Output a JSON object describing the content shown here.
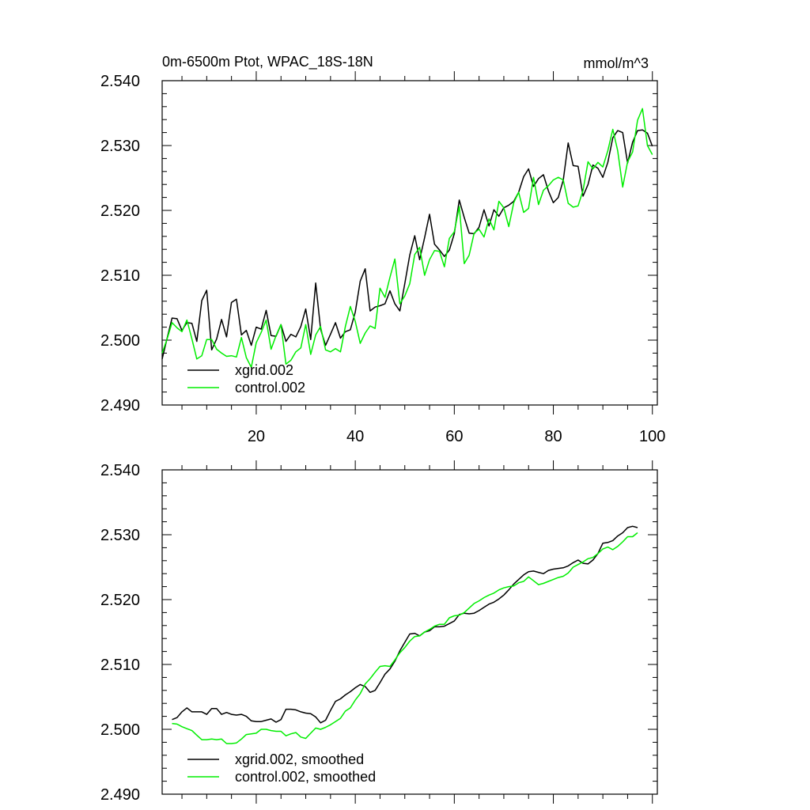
{
  "chart_data": [
    {
      "type": "line",
      "title": "0m-6500m Ptot, WPAC_18S-18N",
      "units": "mmol/m^3",
      "xlim": [
        1,
        101
      ],
      "ylim": [
        2.49,
        2.54
      ],
      "xticks": [
        20,
        40,
        60,
        80,
        100
      ],
      "yticks": [
        "2.490",
        "2.500",
        "2.510",
        "2.520",
        "2.530",
        "2.540"
      ],
      "xtick_labels": [
        "20",
        "40",
        "60",
        "80",
        "100"
      ],
      "legend_position": "bottom-left",
      "series": [
        {
          "name": "xgrid.002",
          "color": "#000000",
          "x_start": 1,
          "values": [
            2.4971,
            2.5003,
            2.5034,
            2.5033,
            2.5015,
            2.5027,
            2.5026,
            2.4998,
            2.5061,
            2.5077,
            2.4985,
            2.5002,
            2.5032,
            2.5005,
            2.5058,
            2.5063,
            2.5008,
            2.5015,
            2.4992,
            2.502,
            2.5017,
            2.5046,
            2.5007,
            2.5006,
            2.5024,
            2.4998,
            2.5009,
            2.5005,
            2.5021,
            2.5048,
            2.5001,
            2.5088,
            2.5017,
            2.4992,
            2.5009,
            2.5027,
            2.5003,
            2.5013,
            2.5016,
            2.5043,
            2.5091,
            2.511,
            2.5045,
            2.5051,
            2.5053,
            2.5056,
            2.5076,
            2.5056,
            2.5045,
            2.5087,
            2.5131,
            2.5161,
            2.5124,
            2.5158,
            2.5194,
            2.5148,
            2.5139,
            2.5129,
            2.5139,
            2.5164,
            2.5216,
            2.5189,
            2.5165,
            2.5164,
            2.5174,
            2.5201,
            2.5176,
            2.5201,
            2.5191,
            2.5204,
            2.5208,
            2.5214,
            2.5228,
            2.5252,
            2.5264,
            2.5237,
            2.5249,
            2.5255,
            2.523,
            2.5212,
            2.522,
            2.5247,
            2.5304,
            2.5269,
            2.5268,
            2.5222,
            2.524,
            2.527,
            2.5265,
            2.5251,
            2.5274,
            2.5312,
            2.5323,
            2.532,
            2.5273,
            2.5305,
            2.5323,
            2.5324,
            2.5319,
            2.5299
          ]
        },
        {
          "name": "control.002",
          "color": "#00ee00",
          "x_start": 1,
          "values": [
            2.498,
            2.5002,
            2.5027,
            2.5019,
            2.5013,
            2.5031,
            2.5002,
            2.4971,
            2.4976,
            2.5001,
            2.5001,
            2.4986,
            2.498,
            2.4975,
            2.4976,
            2.4974,
            2.5004,
            2.4973,
            2.4958,
            2.4996,
            2.5012,
            2.5031,
            2.4986,
            2.5007,
            2.5024,
            2.4963,
            2.4969,
            2.4982,
            2.4988,
            2.5024,
            2.4978,
            2.5008,
            2.5021,
            2.4985,
            2.4982,
            2.4987,
            2.4982,
            2.5021,
            2.5052,
            2.5029,
            2.4995,
            2.5011,
            2.5022,
            2.5018,
            2.508,
            2.5066,
            2.5097,
            2.5125,
            2.5056,
            2.5068,
            2.5087,
            2.5132,
            2.5143,
            2.51,
            2.5124,
            2.5138,
            2.5137,
            2.5113,
            2.5157,
            2.5167,
            2.5206,
            2.5118,
            2.5131,
            2.5165,
            2.5171,
            2.5159,
            2.5187,
            2.517,
            2.5214,
            2.5204,
            2.5175,
            2.5212,
            2.5228,
            2.5197,
            2.5203,
            2.5251,
            2.5209,
            2.5231,
            2.5238,
            2.5247,
            2.5251,
            2.5247,
            2.5211,
            2.5205,
            2.5207,
            2.5231,
            2.5275,
            2.5264,
            2.5274,
            2.5267,
            2.5292,
            2.5325,
            2.5292,
            2.5236,
            2.5275,
            2.529,
            2.5339,
            2.5357,
            2.53,
            2.5286
          ]
        }
      ]
    },
    {
      "type": "line",
      "title": "",
      "xlim": [
        1,
        101
      ],
      "ylim": [
        2.49,
        2.54
      ],
      "xticks": [
        20,
        40,
        60,
        80,
        100
      ],
      "yticks": [
        "2.490",
        "2.500",
        "2.510",
        "2.520",
        "2.530",
        "2.540"
      ],
      "legend_position": "bottom-left",
      "series": [
        {
          "name": "xgrid.002, smoothed",
          "color": "#000000",
          "x_start": 3,
          "values": [
            2.5015,
            2.5018,
            2.5027,
            2.5033,
            2.5027,
            2.5027,
            2.5027,
            2.5023,
            2.5032,
            2.5032,
            2.5023,
            2.5026,
            2.5023,
            2.5022,
            2.5023,
            2.502,
            2.5013,
            2.5012,
            2.5012,
            2.5014,
            2.5016,
            2.5011,
            2.5015,
            2.5031,
            2.5031,
            2.503,
            2.5027,
            2.5025,
            2.5024,
            2.5019,
            2.501,
            2.5014,
            2.5029,
            2.5043,
            2.5047,
            2.5053,
            2.5058,
            2.5064,
            2.5069,
            2.5066,
            2.5057,
            2.506,
            2.5072,
            2.5085,
            2.5093,
            2.5105,
            2.5121,
            2.5134,
            2.5147,
            2.5148,
            2.5144,
            2.515,
            2.5152,
            2.5158,
            2.5158,
            2.5159,
            2.5163,
            2.5167,
            2.5177,
            2.5179,
            2.5178,
            2.5179,
            2.5183,
            2.5188,
            2.5193,
            2.5196,
            2.5201,
            2.5207,
            2.5215,
            2.5224,
            2.5231,
            2.5238,
            2.5243,
            2.5244,
            2.5242,
            2.524,
            2.5245,
            2.5247,
            2.5248,
            2.5249,
            2.5252,
            2.5257,
            2.5261,
            2.5256,
            2.5255,
            2.5261,
            2.5271,
            2.5287,
            2.5288,
            2.5291,
            2.5298,
            2.5303,
            2.5311,
            2.5313,
            2.5311
          ]
        },
        {
          "name": "control.002, smoothed",
          "color": "#00ee00",
          "x_start": 3,
          "values": [
            2.5009,
            2.5008,
            2.5004,
            2.5001,
            2.4998,
            2.4991,
            2.4984,
            2.4984,
            2.4985,
            2.4984,
            2.4985,
            2.4978,
            2.4978,
            2.4979,
            2.4985,
            2.4992,
            2.4993,
            2.4994,
            2.5,
            2.5,
            2.4998,
            2.4997,
            2.4997,
            2.499,
            2.4993,
            2.4995,
            2.4988,
            2.4986,
            2.4994,
            2.5002,
            2.5,
            2.5003,
            2.5007,
            2.5012,
            2.5017,
            2.5028,
            2.5033,
            2.5045,
            2.5055,
            2.507,
            2.5078,
            2.5088,
            2.5097,
            2.5098,
            2.5097,
            2.5107,
            2.5118,
            2.5126,
            2.5136,
            2.5143,
            2.5144,
            2.515,
            2.5154,
            2.5159,
            2.5162,
            2.5162,
            2.5172,
            2.5175,
            2.5176,
            2.518,
            2.5187,
            2.5194,
            2.5198,
            2.5203,
            2.5207,
            2.521,
            2.5215,
            2.5218,
            2.522,
            2.5221,
            2.5226,
            2.5228,
            2.5235,
            2.5229,
            2.5223,
            2.5225,
            2.5228,
            2.5231,
            2.5234,
            2.5236,
            2.5241,
            2.525,
            2.5254,
            2.5258,
            2.5263,
            2.5265,
            2.5271,
            2.5278,
            2.5281,
            2.5277,
            2.5282,
            2.5289,
            2.5297,
            2.5297,
            2.5303
          ]
        }
      ]
    }
  ]
}
